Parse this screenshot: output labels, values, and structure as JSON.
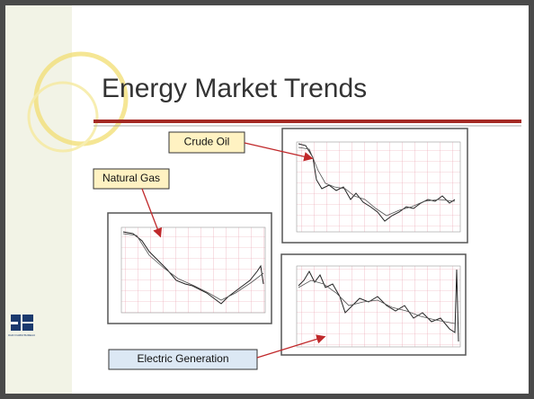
{
  "slide": {
    "title": "Energy Market Trends",
    "callouts": [
      "Crude Oil",
      "Natural Gas",
      "Electric Generation"
    ],
    "logo": {
      "caption": "OHIO FARM BUREAU"
    }
  }
}
